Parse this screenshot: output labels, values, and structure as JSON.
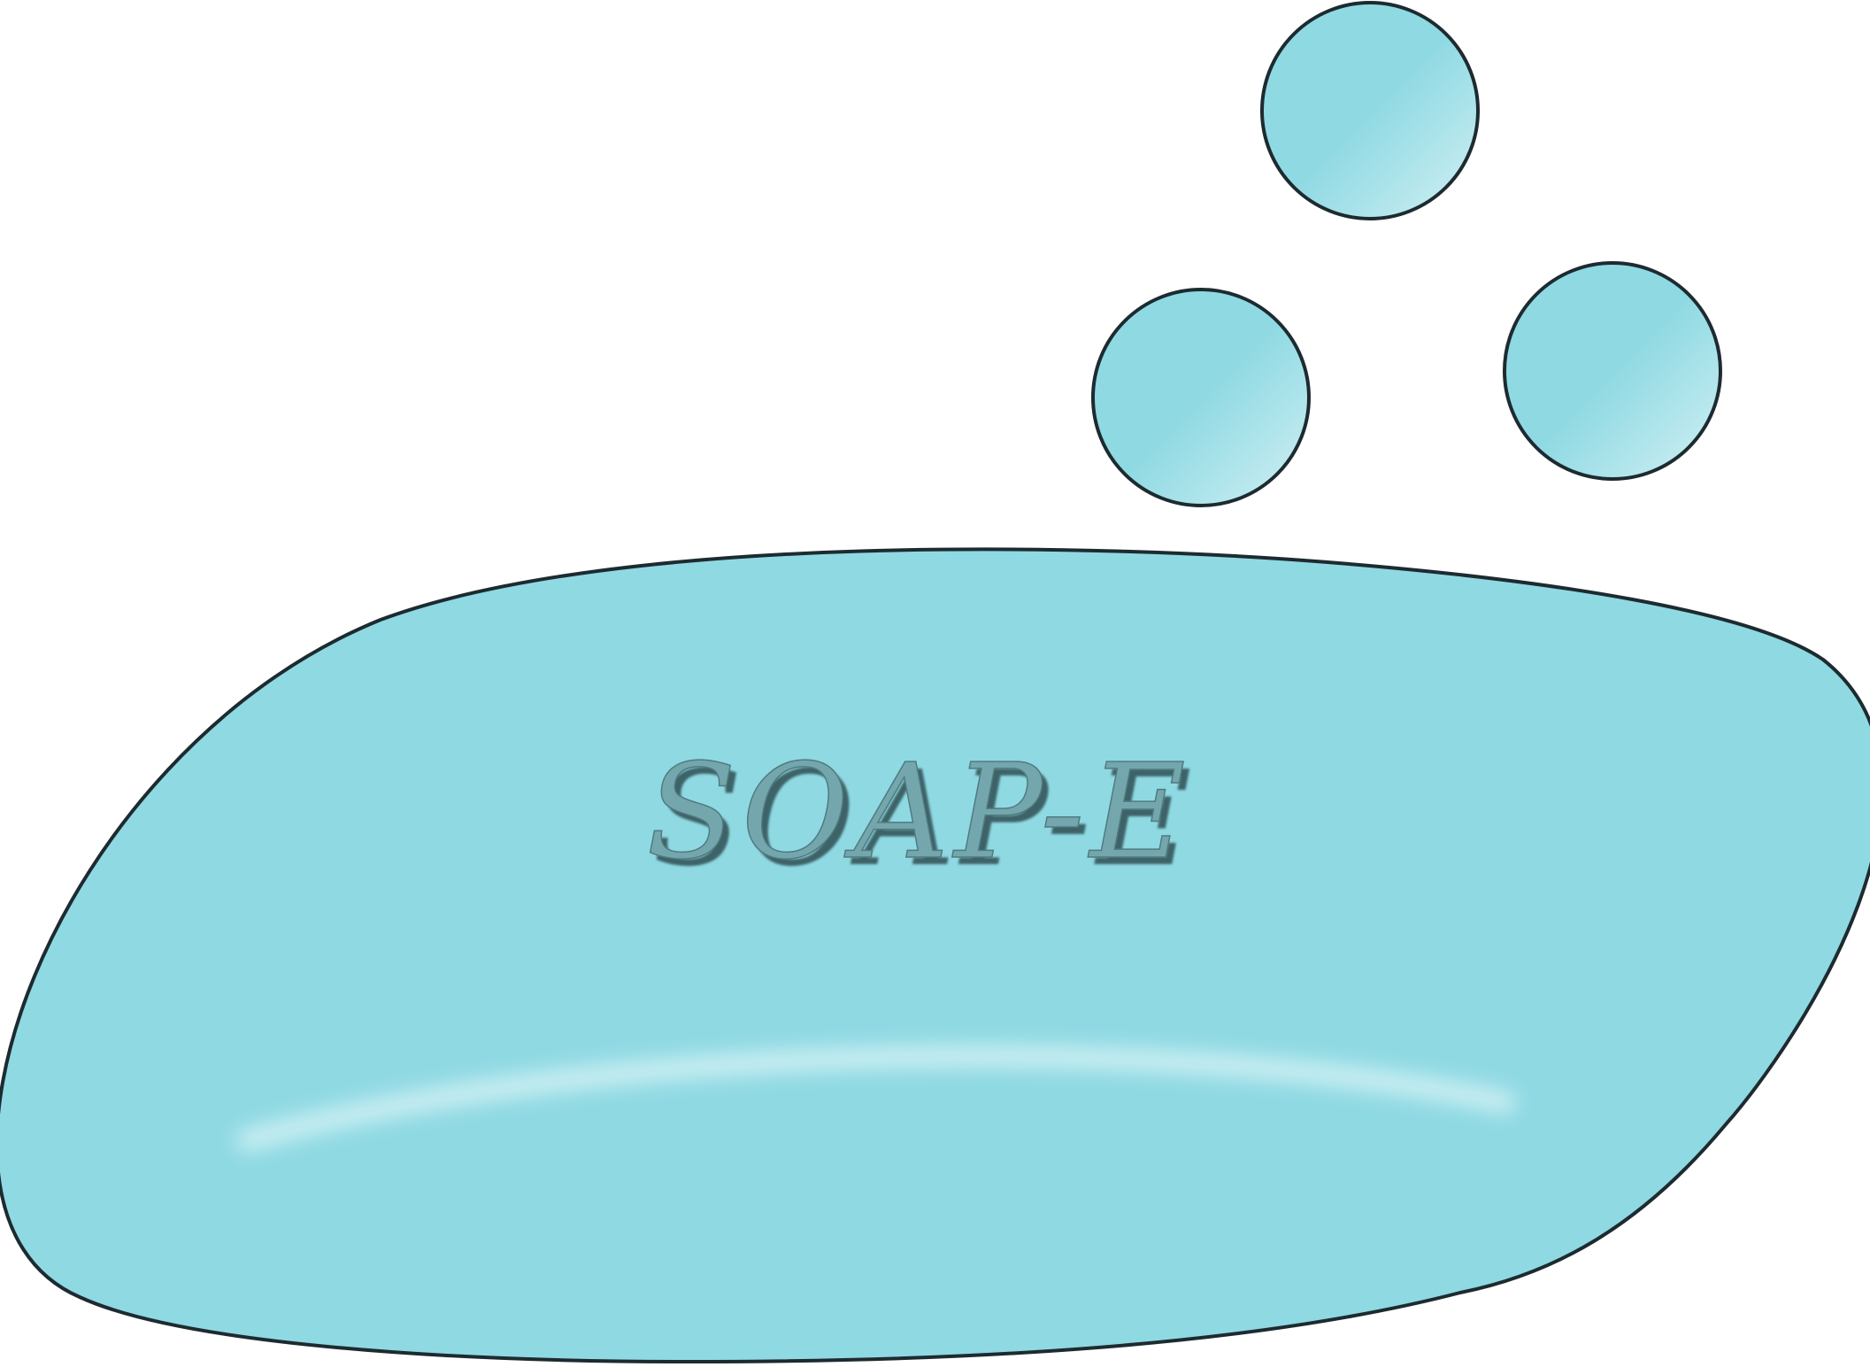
{
  "label": {
    "text": "SOAP-E"
  },
  "bubble_count": 3,
  "colors": {
    "background": "#ffffff",
    "soap_fill": "#8fd9e3",
    "soap_highlight": "#c8eef2",
    "outline": "#1d2b30",
    "text_face": "#74a7ad",
    "text_shadow": "#3e6468"
  }
}
